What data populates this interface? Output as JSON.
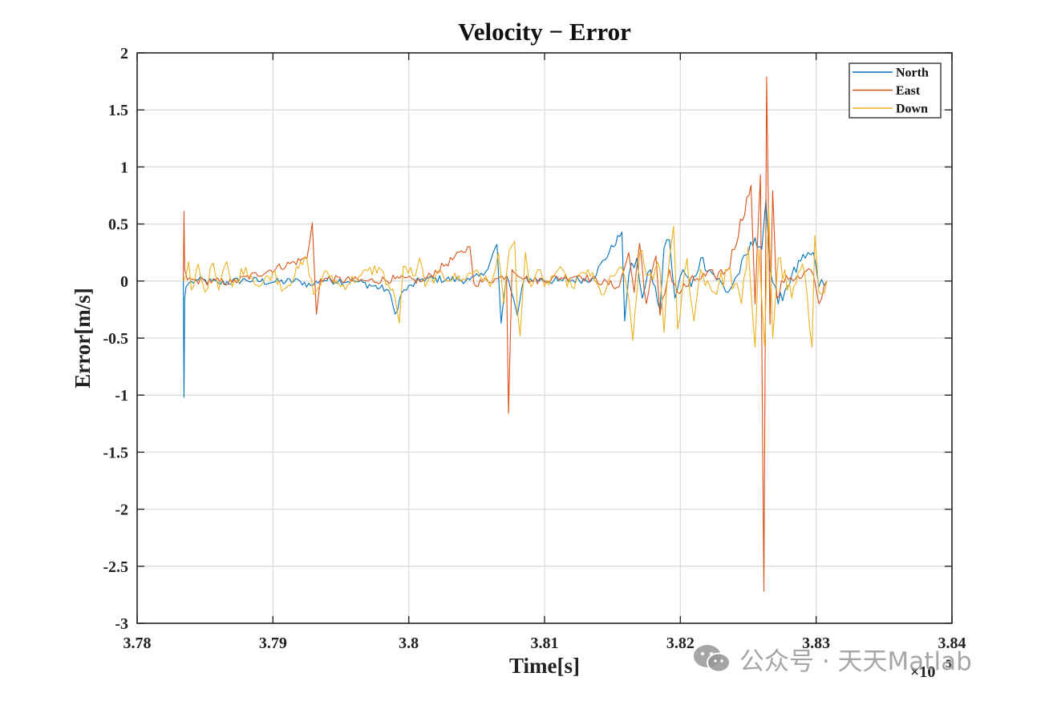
{
  "chart_data": {
    "type": "line",
    "title": "Velocity − Error",
    "xlabel": "Time[s]",
    "ylabel": "Error[m/s]",
    "x_exponent_label": "×10",
    "x_exponent_power": "5",
    "xlim": [
      3.78,
      3.84
    ],
    "ylim": [
      -3,
      2
    ],
    "x_tick_values": [
      3.78,
      3.79,
      3.8,
      3.81,
      3.82,
      3.83,
      3.84
    ],
    "x_tick_labels": [
      "3.78",
      "3.79",
      "3.8",
      "3.81",
      "3.82",
      "3.83",
      "3.84"
    ],
    "y_tick_values": [
      2,
      1.5,
      1,
      0.5,
      0,
      -0.5,
      -1,
      -1.5,
      -2,
      -2.5,
      -3
    ],
    "y_tick_labels": [
      "2",
      "1.5",
      "1",
      "0.5",
      "0",
      "-0.5",
      "-1",
      "-1.5",
      "-2",
      "-2.5",
      "-3"
    ],
    "grid": true,
    "legend_position": "top-right",
    "series": [
      {
        "name": "North",
        "color": "#0072BD",
        "points": [
          [
            3.7834,
            0.0
          ],
          [
            3.78345,
            -1.02
          ],
          [
            3.7835,
            -0.15
          ],
          [
            3.7836,
            -0.05
          ],
          [
            3.7838,
            -0.02
          ],
          [
            3.7845,
            0.01
          ],
          [
            3.786,
            -0.02
          ],
          [
            3.788,
            0.01
          ],
          [
            3.79,
            -0.01
          ],
          [
            3.792,
            0.0
          ],
          [
            3.7928,
            -0.04
          ],
          [
            3.7935,
            0.01
          ],
          [
            3.796,
            0.0
          ],
          [
            3.7985,
            -0.08
          ],
          [
            3.799,
            -0.29
          ],
          [
            3.7995,
            -0.1
          ],
          [
            3.801,
            0.02
          ],
          [
            3.8045,
            0.01
          ],
          [
            3.8055,
            0.05
          ],
          [
            3.8065,
            0.32
          ],
          [
            3.8068,
            -0.37
          ],
          [
            3.8072,
            0.05
          ],
          [
            3.8077,
            -0.15
          ],
          [
            3.808,
            -0.3
          ],
          [
            3.8085,
            0.02
          ],
          [
            3.811,
            0.0
          ],
          [
            3.8135,
            0.02
          ],
          [
            3.8157,
            0.43
          ],
          [
            3.8159,
            -0.35
          ],
          [
            3.8162,
            0.05
          ],
          [
            3.8168,
            0.2
          ],
          [
            3.8172,
            -0.15
          ],
          [
            3.8178,
            0.1
          ],
          [
            3.8185,
            -0.25
          ],
          [
            3.8188,
            0.29
          ],
          [
            3.8192,
            0.36
          ],
          [
            3.8196,
            -0.15
          ],
          [
            3.8202,
            0.1
          ],
          [
            3.8208,
            -0.05
          ],
          [
            3.8215,
            0.2
          ],
          [
            3.8225,
            0.05
          ],
          [
            3.8235,
            -0.1
          ],
          [
            3.8242,
            0.05
          ],
          [
            3.8255,
            0.38
          ],
          [
            3.826,
            0.28
          ],
          [
            3.8263,
            0.71
          ],
          [
            3.8266,
            0.1
          ],
          [
            3.8272,
            -0.2
          ],
          [
            3.8282,
            0.05
          ],
          [
            3.8292,
            0.2
          ],
          [
            3.8298,
            0.25
          ],
          [
            3.8302,
            -0.05
          ],
          [
            3.8308,
            0.0
          ]
        ]
      },
      {
        "name": "East",
        "color": "#D95319",
        "points": [
          [
            3.7834,
            0.0
          ],
          [
            3.78345,
            0.61
          ],
          [
            3.7835,
            0.1
          ],
          [
            3.7837,
            0.01
          ],
          [
            3.785,
            0.0
          ],
          [
            3.787,
            -0.01
          ],
          [
            3.7925,
            0.2
          ],
          [
            3.7929,
            0.51
          ],
          [
            3.7932,
            -0.29
          ],
          [
            3.7935,
            0.02
          ],
          [
            3.797,
            0.0
          ],
          [
            3.799,
            0.02
          ],
          [
            3.801,
            0.0
          ],
          [
            3.8045,
            0.3
          ],
          [
            3.8048,
            -0.02
          ],
          [
            3.8065,
            0.02
          ],
          [
            3.8072,
            0.05
          ],
          [
            3.80735,
            -1.16
          ],
          [
            3.8076,
            0.1
          ],
          [
            3.809,
            0.0
          ],
          [
            3.8125,
            0.05
          ],
          [
            3.8155,
            -0.05
          ],
          [
            3.8162,
            0.25
          ],
          [
            3.8166,
            -0.1
          ],
          [
            3.817,
            0.33
          ],
          [
            3.8175,
            -0.2
          ],
          [
            3.8182,
            0.22
          ],
          [
            3.8185,
            -0.3
          ],
          [
            3.8192,
            0.1
          ],
          [
            3.8198,
            -0.1
          ],
          [
            3.8212,
            0.02
          ],
          [
            3.8225,
            0.05
          ],
          [
            3.8235,
            0.1
          ],
          [
            3.8252,
            0.84
          ],
          [
            3.8255,
            -0.2
          ],
          [
            3.8259,
            0.93
          ],
          [
            3.82615,
            -2.72
          ],
          [
            3.82635,
            1.79
          ],
          [
            3.8266,
            -0.38
          ],
          [
            3.8268,
            0.79
          ],
          [
            3.8271,
            -0.15
          ],
          [
            3.8278,
            0.05
          ],
          [
            3.8288,
            0.02
          ],
          [
            3.8296,
            0.1
          ],
          [
            3.8302,
            -0.2
          ],
          [
            3.8308,
            0.0
          ]
        ]
      },
      {
        "name": "Down",
        "color": "#EDB120",
        "points": [
          [
            3.7834,
            0.0
          ],
          [
            3.7836,
            0.05
          ],
          [
            3.7838,
            0.17
          ],
          [
            3.784,
            -0.08
          ],
          [
            3.7845,
            0.15
          ],
          [
            3.785,
            -0.1
          ],
          [
            3.7856,
            0.16
          ],
          [
            3.786,
            -0.08
          ],
          [
            3.7866,
            0.17
          ],
          [
            3.787,
            -0.05
          ],
          [
            3.788,
            0.12
          ],
          [
            3.789,
            -0.05
          ],
          [
            3.79,
            0.08
          ],
          [
            3.7908,
            -0.07
          ],
          [
            3.7925,
            0.2
          ],
          [
            3.793,
            -0.12
          ],
          [
            3.794,
            0.08
          ],
          [
            3.795,
            -0.05
          ],
          [
            3.7965,
            0.05
          ],
          [
            3.7978,
            0.12
          ],
          [
            3.799,
            -0.15
          ],
          [
            3.7993,
            -0.37
          ],
          [
            3.7996,
            0.13
          ],
          [
            3.8005,
            0.05
          ],
          [
            3.8008,
            0.2
          ],
          [
            3.8012,
            -0.05
          ],
          [
            3.802,
            0.05
          ],
          [
            3.804,
            0.02
          ],
          [
            3.805,
            0.1
          ],
          [
            3.806,
            -0.05
          ],
          [
            3.8066,
            0.25
          ],
          [
            3.807,
            -0.2
          ],
          [
            3.8074,
            0.27
          ],
          [
            3.8078,
            0.35
          ],
          [
            3.808,
            -0.25
          ],
          [
            3.8082,
            -0.48
          ],
          [
            3.8086,
            0.25
          ],
          [
            3.809,
            -0.05
          ],
          [
            3.8095,
            0.1
          ],
          [
            3.81,
            -0.05
          ],
          [
            3.811,
            0.1
          ],
          [
            3.812,
            -0.05
          ],
          [
            3.8132,
            0.1
          ],
          [
            3.8142,
            -0.12
          ],
          [
            3.8155,
            0.12
          ],
          [
            3.8162,
            -0.15
          ],
          [
            3.8165,
            -0.52
          ],
          [
            3.817,
            0.25
          ],
          [
            3.8175,
            0.05
          ],
          [
            3.8185,
            0.1
          ],
          [
            3.8188,
            -0.45
          ],
          [
            3.8192,
            0.2
          ],
          [
            3.8195,
            0.48
          ],
          [
            3.8198,
            -0.42
          ],
          [
            3.8205,
            0.2
          ],
          [
            3.821,
            -0.35
          ],
          [
            3.8215,
            0.1
          ],
          [
            3.8225,
            -0.1
          ],
          [
            3.8235,
            0.1
          ],
          [
            3.8245,
            -0.2
          ],
          [
            3.825,
            0.3
          ],
          [
            3.8255,
            -0.58
          ],
          [
            3.8258,
            0.28
          ],
          [
            3.8262,
            -0.57
          ],
          [
            3.8265,
            0.64
          ],
          [
            3.8268,
            -0.5
          ],
          [
            3.8272,
            0.2
          ],
          [
            3.8282,
            -0.15
          ],
          [
            3.829,
            0.15
          ],
          [
            3.8297,
            -0.58
          ],
          [
            3.8299,
            0.4
          ],
          [
            3.8302,
            -0.1
          ],
          [
            3.8308,
            0.0
          ]
        ]
      }
    ]
  },
  "watermark": {
    "text": "公众号 · 天天Matlab",
    "icon": "wechat-icon"
  }
}
